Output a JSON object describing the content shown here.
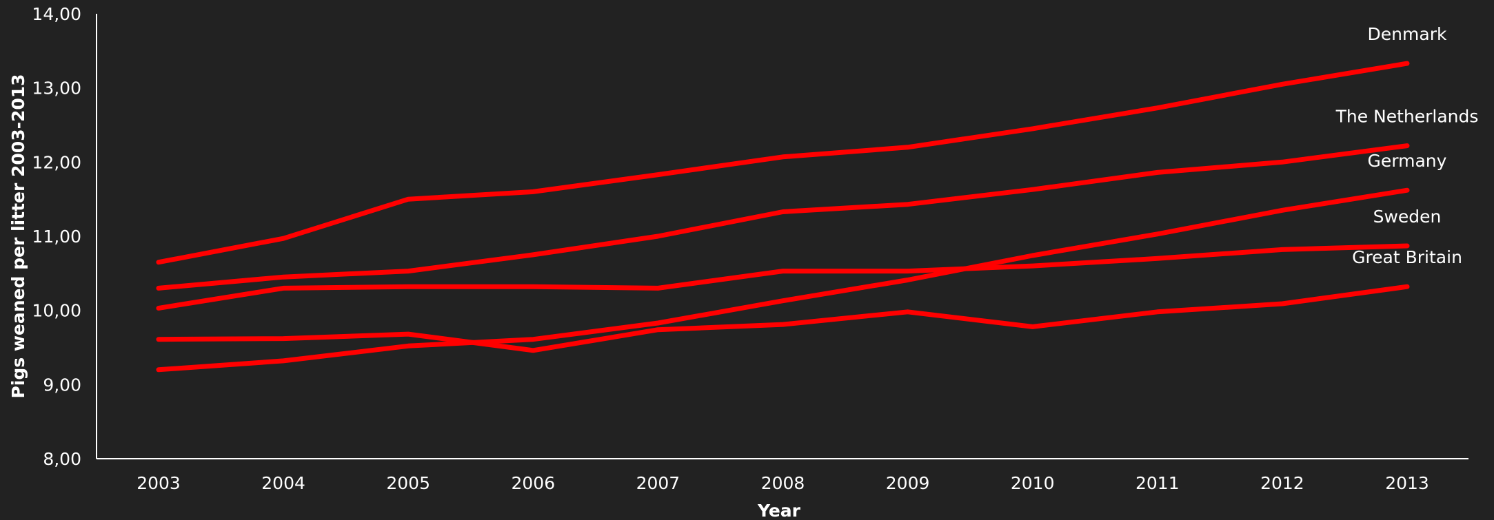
{
  "chart_data": {
    "type": "line",
    "title": "",
    "xlabel": "Year",
    "ylabel": "Pigs weaned per litter 2003-2013",
    "x": [
      "2003",
      "2004",
      "2005",
      "2006",
      "2007",
      "2008",
      "2009",
      "2010",
      "2011",
      "2012",
      "2013"
    ],
    "ylim": [
      8,
      14
    ],
    "yticks": [
      "8,00",
      "9,00",
      "10,00",
      "11,00",
      "12,00",
      "13,00",
      "14,00"
    ],
    "grid": false,
    "legend": "none",
    "line_color": "#ff0000",
    "series": [
      {
        "name": "Denmark",
        "values": [
          10.65,
          10.97,
          11.5,
          11.6,
          11.83,
          12.07,
          12.2,
          12.45,
          12.73,
          13.05,
          13.33
        ]
      },
      {
        "name": "The Netherlands",
        "values": [
          10.3,
          10.45,
          10.53,
          10.75,
          11.0,
          11.33,
          11.43,
          11.63,
          11.86,
          12.0,
          12.22
        ]
      },
      {
        "name": "Germany",
        "values": [
          9.2,
          9.32,
          9.52,
          9.61,
          9.83,
          10.13,
          10.41,
          10.74,
          11.03,
          11.35,
          11.62
        ]
      },
      {
        "name": "Sweden",
        "values": [
          10.03,
          10.3,
          10.32,
          10.32,
          10.3,
          10.53,
          10.53,
          10.6,
          10.7,
          10.82,
          10.87
        ]
      },
      {
        "name": "Great Britain",
        "values": [
          9.61,
          9.62,
          9.68,
          9.46,
          9.74,
          9.81,
          9.98,
          9.78,
          9.98,
          10.09,
          10.32
        ]
      }
    ]
  }
}
